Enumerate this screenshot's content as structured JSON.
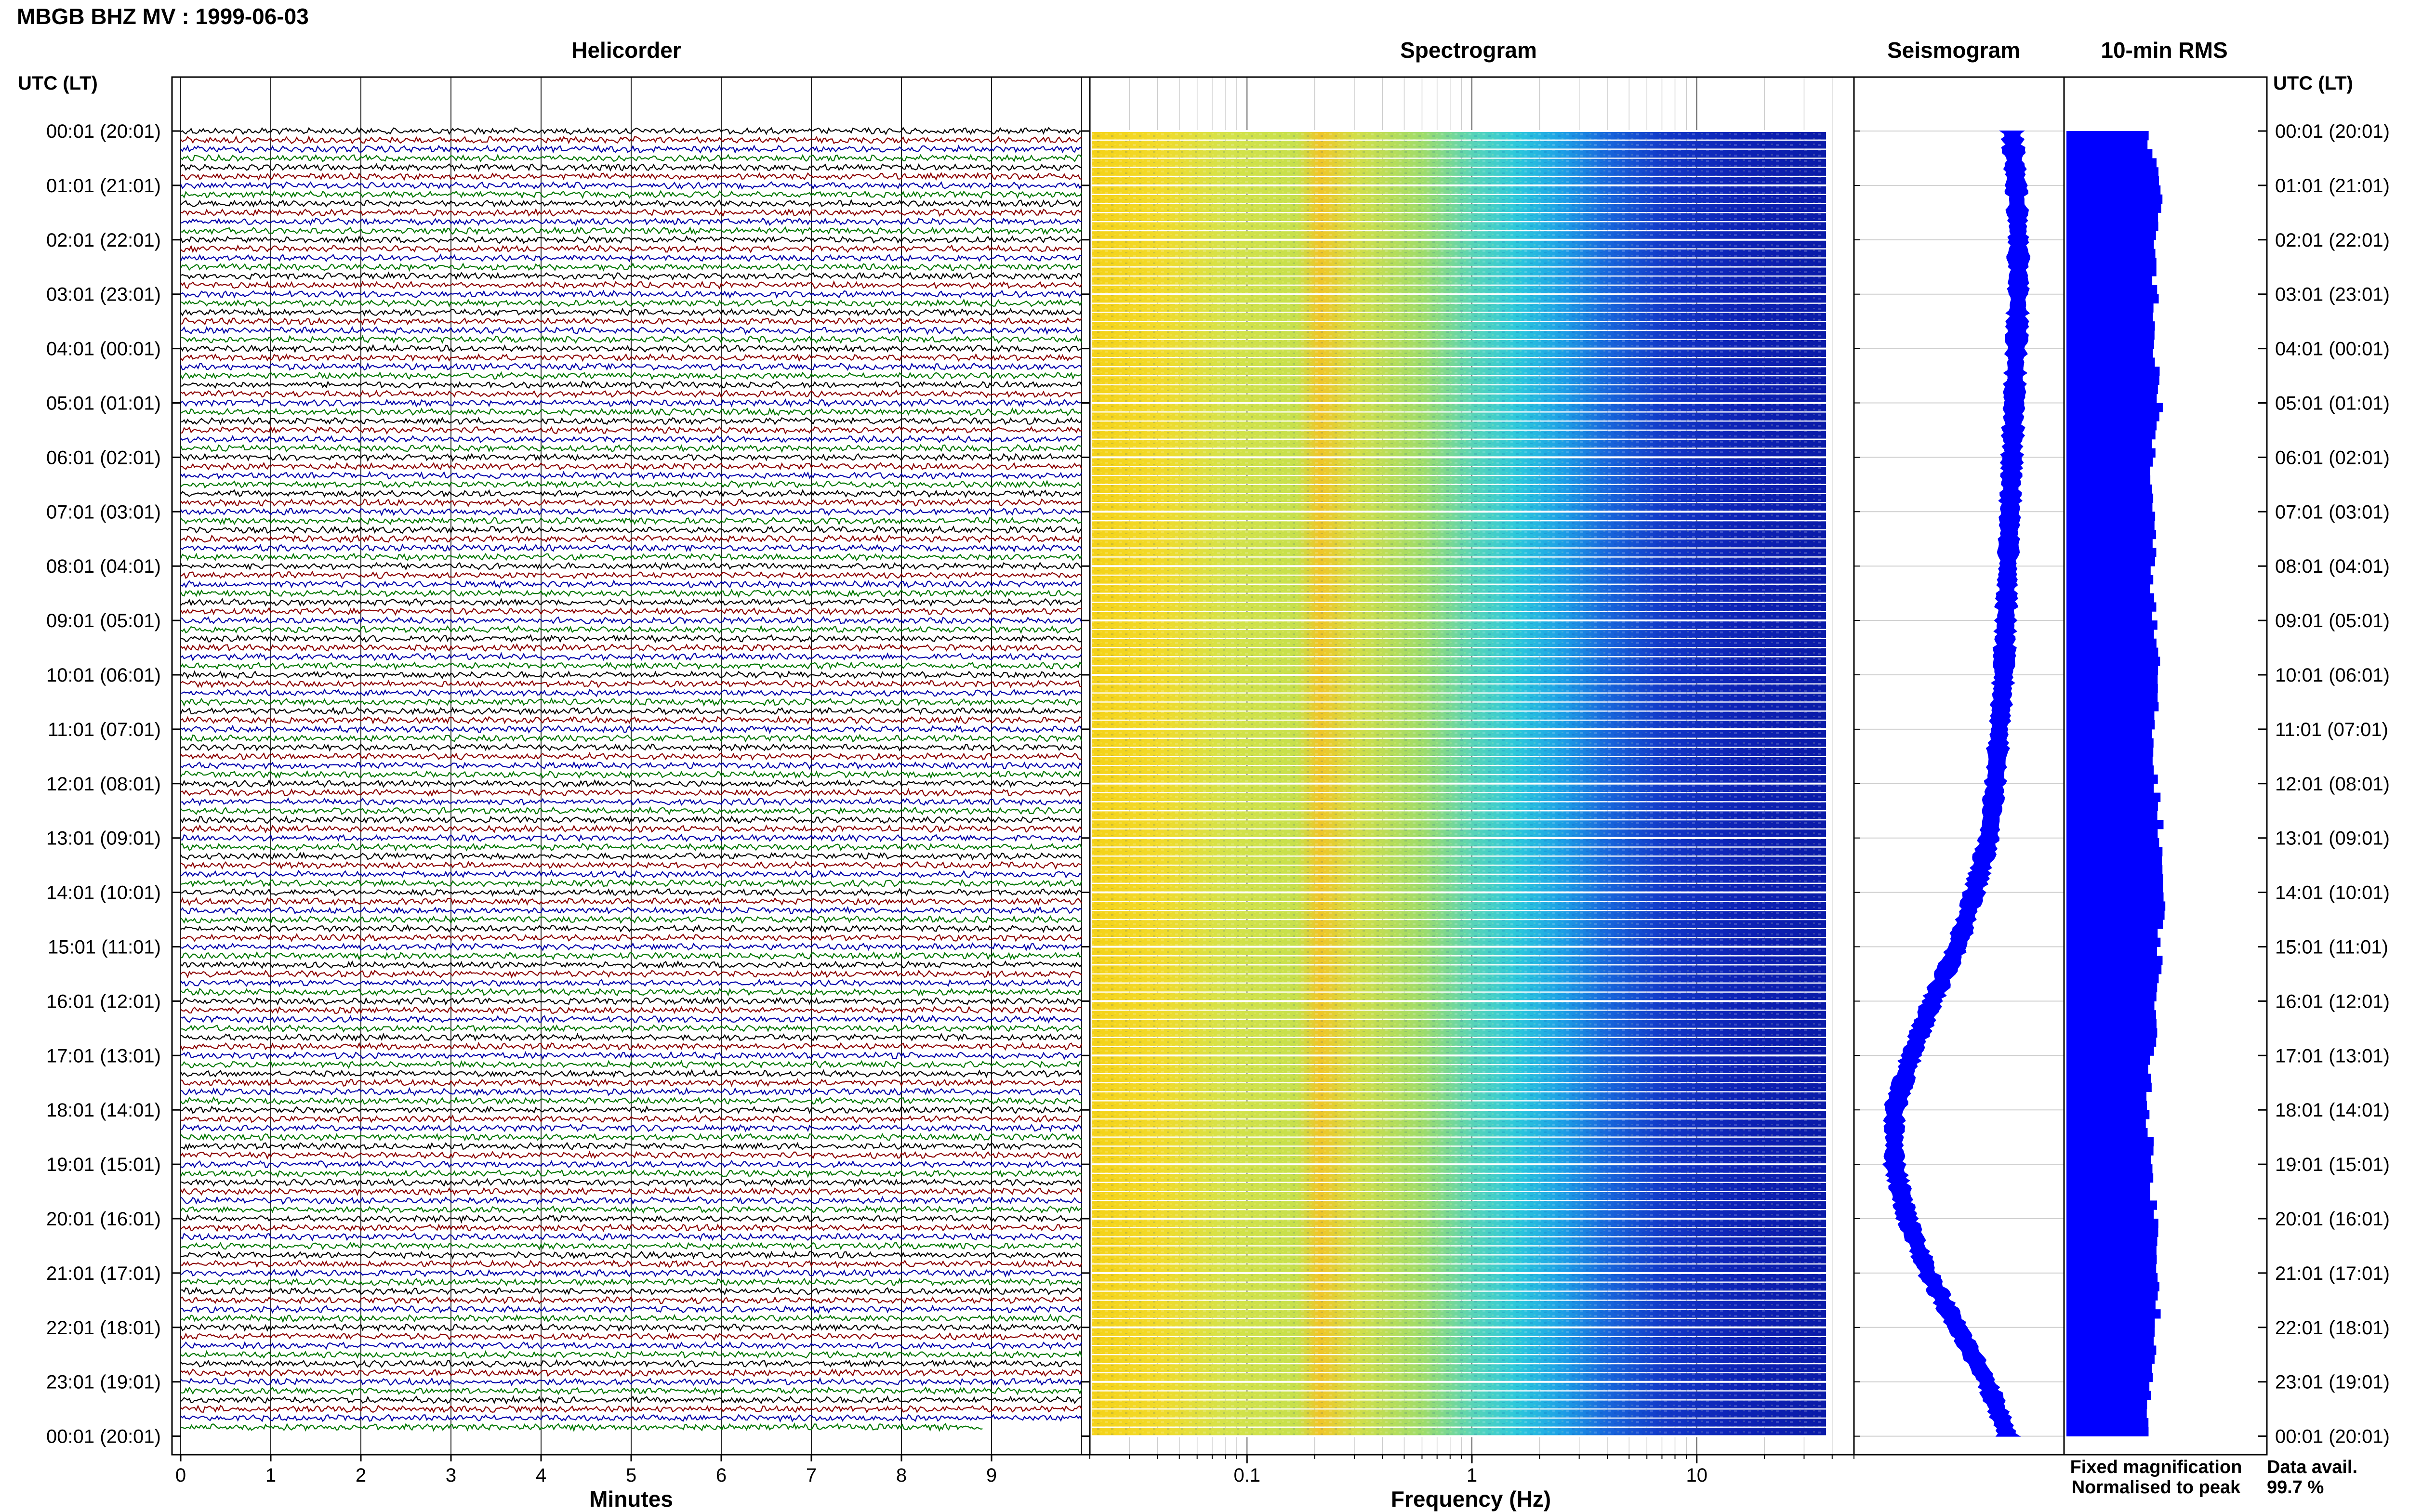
{
  "header": {
    "title": "MBGB BHZ MV : 1999-06-03"
  },
  "panels": {
    "helicorder": "Helicorder",
    "spectrogram": "Spectrogram",
    "seismogram": "Seismogram",
    "rms": "10-min RMS"
  },
  "axes": {
    "left_label": "UTC (LT)",
    "right_label": "UTC (LT)",
    "minutes_label": "Minutes",
    "frequency_label": "Frequency (Hz)"
  },
  "time_labels": [
    "00:01 (20:01)",
    "01:01 (21:01)",
    "02:01 (22:01)",
    "03:01 (23:01)",
    "04:01 (00:01)",
    "05:01 (01:01)",
    "06:01 (02:01)",
    "07:01 (03:01)",
    "08:01 (04:01)",
    "09:01 (05:01)",
    "10:01 (06:01)",
    "11:01 (07:01)",
    "12:01 (08:01)",
    "13:01 (09:01)",
    "14:01 (10:01)",
    "15:01 (11:01)",
    "16:01 (12:01)",
    "17:01 (13:01)",
    "18:01 (14:01)",
    "19:01 (15:01)",
    "20:01 (16:01)",
    "21:01 (17:01)",
    "22:01 (18:01)",
    "23:01 (19:01)",
    "00:01 (20:01)"
  ],
  "minute_ticks": [
    "0",
    "1",
    "2",
    "3",
    "4",
    "5",
    "6",
    "7",
    "8",
    "9"
  ],
  "freq_ticks": [
    {
      "label": "0.1",
      "value": 0.1
    },
    {
      "label": "1",
      "value": 1
    },
    {
      "label": "10",
      "value": 10
    }
  ],
  "legend": {
    "fixed": "Fixed magnification",
    "normalised": "Normalised to peak",
    "fixed_color": "#0000ff",
    "normalised_color": "#ff0000"
  },
  "data_avail": {
    "label": "Data avail.",
    "value": "99.7 %"
  },
  "colors": {
    "trace_cycle": [
      "#000000",
      "#8b0000",
      "#0000aa",
      "#007700"
    ],
    "seismogram": "#0000ff",
    "rms": "#0000ff"
  },
  "chart_data": [
    {
      "type": "line",
      "title": "Helicorder",
      "xlabel": "Minutes",
      "xlim": [
        0,
        10
      ],
      "rows_per_hour": 6,
      "rows": 144
    },
    {
      "type": "heatmap",
      "title": "Spectrogram",
      "xlabel": "Frequency (Hz)",
      "xscale": "log",
      "xlim": [
        0.02,
        50
      ],
      "rows": 144
    },
    {
      "type": "line",
      "title": "Seismogram",
      "x_offset_profile": [
        0.78,
        0.8,
        0.81,
        0.81,
        0.8,
        0.79,
        0.78,
        0.77,
        0.76,
        0.75,
        0.74,
        0.72,
        0.7,
        0.67,
        0.6,
        0.52,
        0.4,
        0.3,
        0.22,
        0.22,
        0.28,
        0.38,
        0.52,
        0.66,
        0.76
      ]
    },
    {
      "type": "bar",
      "title": "10-min RMS",
      "relative_values_hourly": [
        0.58,
        0.66,
        0.62,
        0.63,
        0.62,
        0.66,
        0.6,
        0.61,
        0.61,
        0.62,
        0.65,
        0.6,
        0.64,
        0.67,
        0.68,
        0.66,
        0.64,
        0.6,
        0.58,
        0.6,
        0.63,
        0.66,
        0.64,
        0.58,
        0.56
      ]
    }
  ]
}
